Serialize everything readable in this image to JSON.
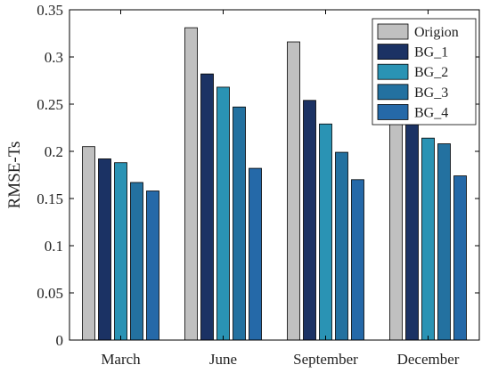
{
  "chart_data": {
    "type": "bar",
    "title": "",
    "xlabel": "",
    "ylabel": "RMSE-Ts",
    "ylim": [
      0,
      0.35
    ],
    "yticks": [
      0,
      0.05,
      0.1,
      0.15,
      0.2,
      0.25,
      0.3,
      0.35
    ],
    "ytick_labels": [
      "0",
      "0.05",
      "0.1",
      "0.15",
      "0.2",
      "0.25",
      "0.3",
      "0.35"
    ],
    "categories": [
      "March",
      "June",
      "September",
      "December"
    ],
    "grid": false,
    "legend_position": "top-right",
    "series": [
      {
        "name": "Origion",
        "color": "#c0c0c0",
        "values": [
          0.205,
          0.331,
          0.316,
          0.23
        ]
      },
      {
        "name": "BG_1",
        "color": "#1b3264",
        "values": [
          0.192,
          0.282,
          0.254,
          0.235
        ]
      },
      {
        "name": "BG_2",
        "color": "#2a93b4",
        "values": [
          0.188,
          0.268,
          0.229,
          0.214
        ]
      },
      {
        "name": "BG_3",
        "color": "#2371a0",
        "values": [
          0.167,
          0.247,
          0.199,
          0.208
        ]
      },
      {
        "name": "BG_4",
        "color": "#2569a8",
        "values": [
          0.158,
          0.182,
          0.17,
          0.174
        ]
      }
    ]
  }
}
